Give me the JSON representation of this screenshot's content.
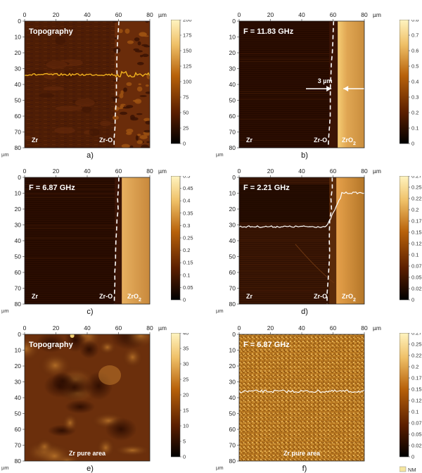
{
  "figure": {
    "panels": [
      {
        "id": "a",
        "caption": "a)",
        "label": "Topography",
        "regions": [
          "Zr",
          "Zr-O"
        ],
        "scale_unit": "nm",
        "scale_ticks": [
          "200",
          "175",
          "150",
          "125",
          "100",
          "75",
          "50",
          "25",
          "0"
        ],
        "kind": "topo-boundary",
        "profile": "orange"
      },
      {
        "id": "b",
        "caption": "b)",
        "label": "F = 11.83 GHz",
        "regions": [
          "Zr",
          "Zr-O",
          "ZrO2"
        ],
        "scale_unit": "deg",
        "scale_ticks": [
          "0.8",
          "0.7",
          "0.6",
          "0.5",
          "0.4",
          "0.3",
          "0.2",
          "0.1",
          "0"
        ],
        "kind": "phase",
        "annotation": "3 µm"
      },
      {
        "id": "c",
        "caption": "c)",
        "label": "F = 6.87 GHz",
        "regions": [
          "Zr",
          "Zr-O",
          "ZrO2"
        ],
        "scale_unit": "deg",
        "scale_ticks": [
          "0.5",
          "0.45",
          "0.4",
          "0.35",
          "0.3",
          "0.25",
          "0.2",
          "0.15",
          "0.1",
          "0.05",
          "0"
        ],
        "kind": "phase"
      },
      {
        "id": "d",
        "caption": "d)",
        "label": "F = 2.21 GHz",
        "regions": [
          "Zr",
          "Zr-O",
          "ZrO2"
        ],
        "scale_unit": "deg",
        "scale_ticks": [
          "0.27",
          "0.25",
          "0.22",
          "0.2",
          "0.17",
          "0.15",
          "0.12",
          "0.1",
          "0.07",
          "0.05",
          "0.02",
          "0"
        ],
        "kind": "phase",
        "profile": "white-step"
      },
      {
        "id": "e",
        "caption": "e)",
        "label": "Topography",
        "regions": [
          "Zr pure area"
        ],
        "scale_unit": "nm",
        "scale_ticks": [
          "40",
          "35",
          "30",
          "25",
          "20",
          "15",
          "10",
          "5",
          "0"
        ],
        "kind": "topo-pure"
      },
      {
        "id": "f",
        "caption": "f)",
        "label": "F = 6.87 GHz",
        "regions": [
          "Zr pure area"
        ],
        "scale_unit": "",
        "scale_ticks": [
          "0.27",
          "0.25",
          "0.22",
          "0.2",
          "0.17",
          "0.15",
          "0.12",
          "0.1",
          "0.07",
          "0.05",
          "0.02",
          "0"
        ],
        "kind": "noise",
        "profile": "white-flat",
        "legend_stub": "NM"
      }
    ],
    "axis": {
      "x_ticks": [
        "0",
        "20",
        "40",
        "60",
        "80"
      ],
      "x_unit": "µm",
      "y_ticks": [
        "0",
        "10",
        "20",
        "30",
        "40",
        "50",
        "60",
        "70",
        "80"
      ],
      "y_unit": "µm"
    },
    "colors": {
      "dark_brown": "#2a0d00",
      "mid_brown": "#5a2508",
      "ox_gold": "#d9a04e",
      "profile_orange": "#f2b21e",
      "dashed_line": "#ffffff"
    }
  }
}
